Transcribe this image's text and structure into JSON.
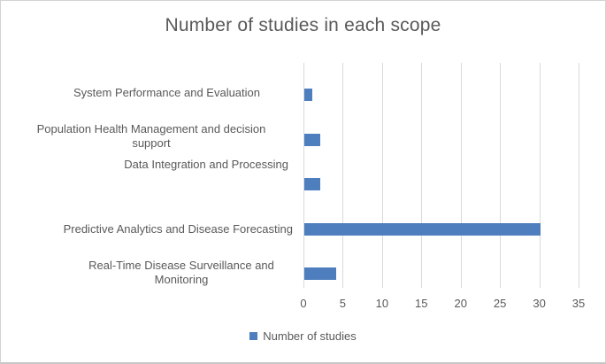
{
  "title": "Number of studies in each scope",
  "legend": {
    "label": "Number of studies",
    "swatch_color": "#4e7ebe"
  },
  "colors": {
    "bar": "#4e7ebe",
    "gridline": "#d9d9d9",
    "text": "#595959"
  },
  "chart_data": {
    "type": "bar",
    "orientation": "horizontal",
    "title": "Number of studies in each scope",
    "categories": [
      "System Performance and Evaluation",
      "Population Health Management and decision support",
      "Data Integration and Processing",
      "Predictive Analytics and Disease Forecasting",
      "Real-Time Disease Surveillance and Monitoring"
    ],
    "category_labels_wrapped": [
      "System Performance and Evaluation",
      "Population Health Management and decision\nsupport",
      "Data Integration and Processing",
      "Predictive Analytics and Disease Forecasting",
      "Real-Time Disease Surveillance and\nMonitoring"
    ],
    "series": [
      {
        "name": "Number of studies",
        "values": [
          1,
          2,
          2,
          30,
          4
        ]
      }
    ],
    "x_ticks": [
      0,
      5,
      10,
      15,
      20,
      25,
      30,
      35
    ],
    "xlim": [
      0,
      35
    ],
    "xlabel": "",
    "ylabel": "",
    "grid": true,
    "legend_position": "bottom"
  }
}
